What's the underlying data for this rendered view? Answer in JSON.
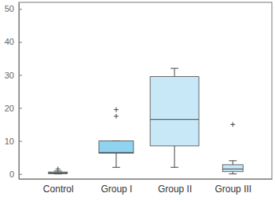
{
  "chart_data": {
    "type": "box",
    "categories": [
      "Control",
      "Group I",
      "Group II",
      "Group III"
    ],
    "boxes": [
      {
        "min": 0,
        "q1": 0.1,
        "median": 0.3,
        "q3": 0.6,
        "max": 0.9,
        "outliers": [
          1.5
        ]
      },
      {
        "min": 2,
        "q1": 6.3,
        "median": 6.5,
        "q3": 10,
        "max": 10,
        "outliers": [
          17.5,
          19.5
        ]
      },
      {
        "min": 2,
        "q1": 8.5,
        "median": 16.5,
        "q3": 29.5,
        "max": 32,
        "outliers": []
      },
      {
        "min": 0,
        "q1": 0.7,
        "median": 1.5,
        "q3": 2.8,
        "max": 4,
        "outliers": [
          15
        ]
      }
    ],
    "colors": [
      "#c8e8f7",
      "#8fd3f0",
      "#c8e8f7",
      "#c8e8f7"
    ],
    "marker": "plus",
    "ylim": [
      -1.5,
      52
    ],
    "yticks": [
      0,
      10,
      20,
      30,
      40,
      50
    ]
  }
}
